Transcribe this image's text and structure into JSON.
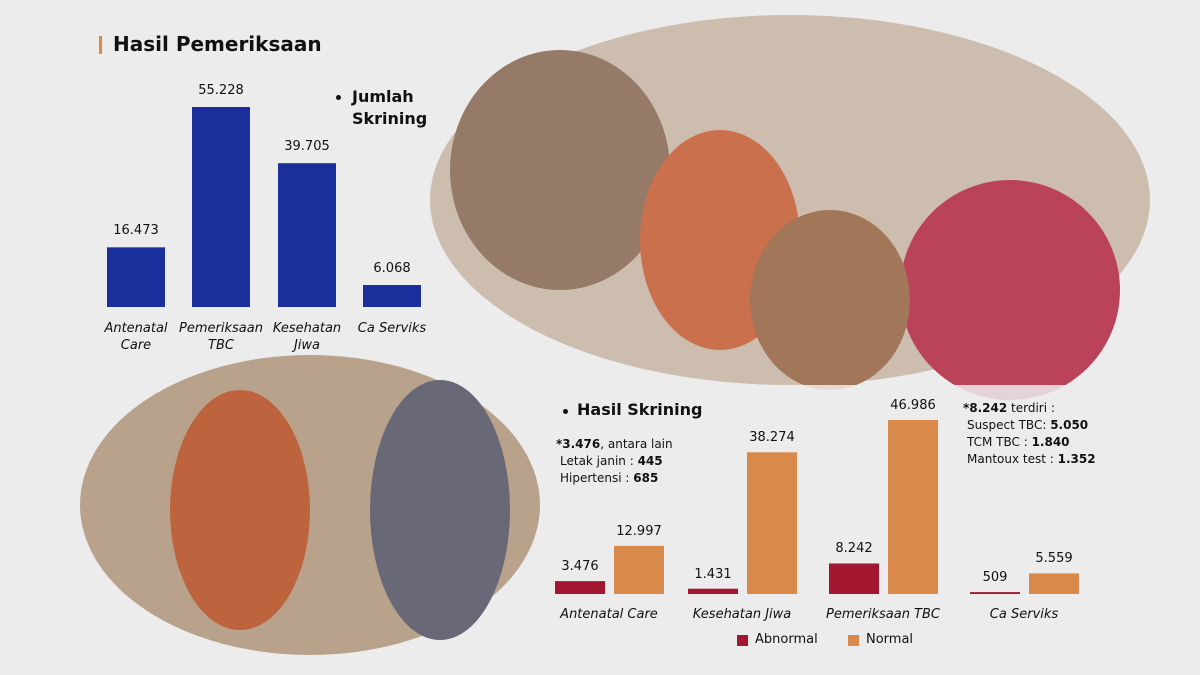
{
  "header": {
    "title": "Hasil Pemeriksaan"
  },
  "chart_data": [
    {
      "type": "bar",
      "legend": "Jumlah Skrining",
      "color": "#1a2f9c",
      "categories": [
        "Antenatal Care",
        "Pemeriksaan TBC",
        "Kesehatan Jiwa",
        "Ca Serviks"
      ],
      "values": [
        16473,
        55228,
        39705,
        6068
      ],
      "value_labels": [
        "16.473",
        "55.228",
        "39.705",
        "6.068"
      ]
    },
    {
      "type": "grouped_bar",
      "title": "Hasil Skrining",
      "categories": [
        "Antenatal Care",
        "Kesehatan Jiwa",
        "Pemeriksaan TBC",
        "Ca Serviks"
      ],
      "series": [
        {
          "name": "Abnormal",
          "color": "#a3162f",
          "values": [
            3476,
            1431,
            8242,
            509
          ],
          "value_labels": [
            "3.476",
            "1.431",
            "8.242",
            "509"
          ]
        },
        {
          "name": "Normal",
          "color": "#d98a4b",
          "values": [
            12997,
            38274,
            46986,
            5559
          ],
          "value_labels": [
            "12.997",
            "38.274",
            "46.986",
            "5.559"
          ]
        }
      ],
      "annotations": [
        {
          "lines": [
            [
              "*3.476",
              ", antara lain"
            ],
            [
              "Letak janin : ",
              "445"
            ],
            [
              "Hipertensi : ",
              "685"
            ]
          ]
        },
        {
          "lines": [
            [
              "*8.242",
              " terdiri :"
            ],
            [
              "Suspect TBC: ",
              "5.050"
            ],
            [
              "TCM TBC : ",
              "1.840"
            ],
            [
              "Mantoux test : ",
              "1.352"
            ]
          ]
        }
      ]
    }
  ]
}
